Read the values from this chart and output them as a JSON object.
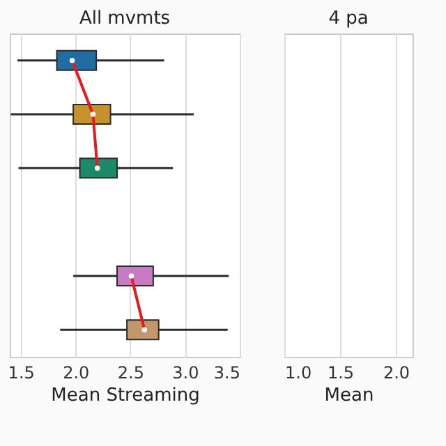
{
  "chart_data": [
    {
      "type": "box",
      "title": "All mvmts",
      "xlabel": "Mean Streaming",
      "orientation": "horizontal",
      "categories": [
        null,
        null,
        null,
        null,
        null,
        null
      ],
      "colors": [
        "#1f6ea3",
        "#c8922a",
        "#1b8a68",
        null,
        "#c97bc2",
        "#c4966b"
      ],
      "boxes": [
        {
          "low": 1.47,
          "q1": 1.83,
          "median": 1.97,
          "q3": 2.19,
          "high": 2.81
        },
        {
          "low": 1.41,
          "q1": 1.98,
          "median": 2.16,
          "q3": 2.32,
          "high": 3.08
        },
        {
          "low": 1.48,
          "q1": 2.04,
          "median": 2.2,
          "q3": 2.38,
          "high": 2.89
        },
        null,
        {
          "low": 1.98,
          "q1": 2.38,
          "median": 2.51,
          "q3": 2.71,
          "high": 3.4
        },
        {
          "low": 1.86,
          "q1": 2.47,
          "median": 2.63,
          "q3": 2.76,
          "high": 3.39
        }
      ],
      "series": [
        {
          "type": "line",
          "color": "#e41a1c",
          "values": [
            1.97,
            2.16,
            2.2,
            null,
            2.51,
            2.63
          ]
        }
      ],
      "xlim": [
        1.4,
        3.5
      ],
      "xticks": [
        {
          "value": 1.5,
          "label": "1.5"
        },
        {
          "value": 2.0,
          "label": "2.0"
        },
        {
          "value": 2.5,
          "label": "2.5"
        },
        {
          "value": 3.0,
          "label": "3.0"
        },
        {
          "value": 3.5,
          "label": "3.5"
        }
      ],
      "grid": "x",
      "tick_labels": "x"
    },
    {
      "type": "box",
      "title": "4 pa",
      "xlabel": "Mean",
      "orientation": "horizontal",
      "categories": [
        null,
        null,
        null,
        null,
        null,
        null
      ],
      "boxes": [
        null,
        null,
        null,
        null,
        null,
        null
      ],
      "xlim": [
        1.0,
        2.15
      ],
      "xticks": [
        {
          "value": 1.0,
          "label": "1.0"
        },
        {
          "value": 1.5,
          "label": "1.5"
        },
        {
          "value": 2.0,
          "label": "2.0"
        }
      ],
      "grid": "x",
      "tick_labels": "x"
    }
  ]
}
